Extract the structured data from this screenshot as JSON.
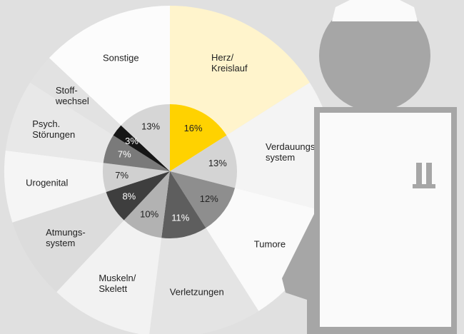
{
  "chart_data": {
    "type": "pie",
    "categories": [
      "Herz/\nKreislauf",
      "Verdauungs-\nsystem",
      "Tumore",
      "Verletzungen",
      "Muskeln/\nSkelett",
      "Atmungs-\nsystem",
      "Urogenital",
      "Psych.\nStörungen",
      "Stoff-\nwechsel",
      "Sonstige"
    ],
    "values": [
      16,
      13,
      12,
      11,
      10,
      8,
      7,
      7,
      3,
      13
    ],
    "value_labels": [
      "16%",
      "13%",
      "12%",
      "11%",
      "10%",
      "8%",
      "7%",
      "7%",
      "3%",
      "13%"
    ],
    "colors": [
      "#ffd200",
      "#d4d4d4",
      "#8e8e8e",
      "#5e5e5e",
      "#b2b2b2",
      "#3e3e3e",
      "#d0d0d0",
      "#7a7a7a",
      "#161616",
      "#d6d6d6"
    ],
    "outer_colors": [
      "#fff4cc",
      "#f4f4f4",
      "#fafafa",
      "#e4e4e4",
      "#f2f2f2",
      "#dcdcdc",
      "#f5f5f5",
      "#e8e8e8",
      "#e2e2e2",
      "#fcfcfc"
    ]
  }
}
